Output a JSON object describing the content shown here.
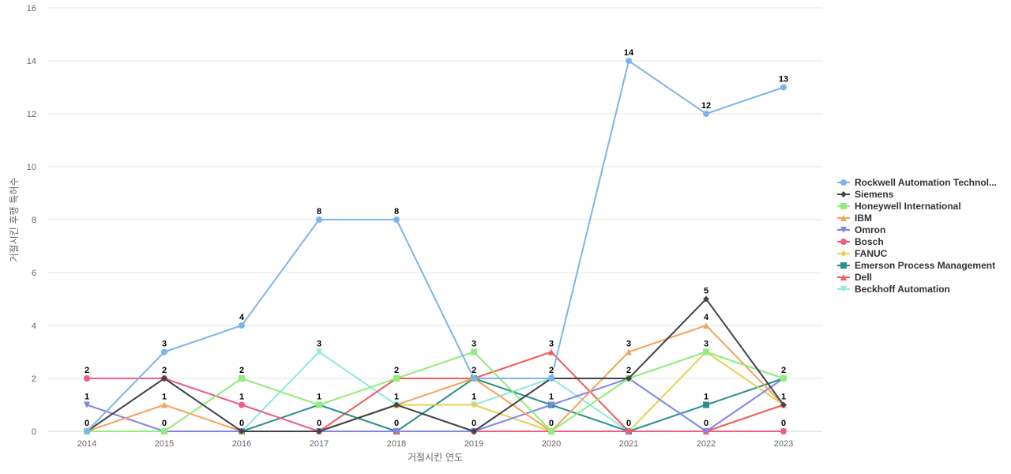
{
  "chart_data": {
    "type": "line",
    "xlabel": "거절시킨 연도",
    "ylabel": "거절시킨 후행 특허수",
    "x": [
      "2014",
      "2015",
      "2016",
      "2017",
      "2018",
      "2019",
      "2020",
      "2021",
      "2022",
      "2023"
    ],
    "ylim": [
      0,
      16
    ],
    "yticks": [
      0,
      2,
      4,
      6,
      8,
      10,
      12,
      14,
      16
    ],
    "grid": true,
    "legend_position": "right",
    "series": [
      {
        "name": "Rockwell Automation Technol...",
        "color": "#7cb5ec",
        "marker": "circle",
        "values": [
          0,
          3,
          4,
          8,
          8,
          2,
          2,
          14,
          12,
          13
        ]
      },
      {
        "name": "Siemens",
        "color": "#434348",
        "marker": "diamond",
        "values": [
          0,
          2,
          0,
          0,
          1,
          0,
          2,
          2,
          5,
          1
        ]
      },
      {
        "name": "Honeywell International",
        "color": "#90ed7d",
        "marker": "square",
        "values": [
          0,
          0,
          2,
          1,
          2,
          3,
          0,
          2,
          3,
          2
        ]
      },
      {
        "name": "IBM",
        "color": "#f7a35c",
        "marker": "triangle",
        "values": [
          0,
          1,
          0,
          0,
          1,
          2,
          0,
          3,
          4,
          1
        ]
      },
      {
        "name": "Omron",
        "color": "#8085e9",
        "marker": "triangle-down",
        "values": [
          1,
          0,
          0,
          0,
          0,
          0,
          1,
          2,
          0,
          2
        ]
      },
      {
        "name": "Bosch",
        "color": "#f15c80",
        "marker": "circle",
        "values": [
          2,
          2,
          1,
          0,
          0,
          0,
          0,
          0,
          0,
          0
        ]
      },
      {
        "name": "FANUC",
        "color": "#e4d354",
        "marker": "diamond",
        "values": [
          0,
          0,
          0,
          0,
          1,
          1,
          0,
          0,
          3,
          1
        ]
      },
      {
        "name": "Emerson Process Management",
        "color": "#2b908f",
        "marker": "square",
        "values": [
          0,
          0,
          0,
          1,
          0,
          2,
          1,
          0,
          1,
          2
        ]
      },
      {
        "name": "Dell",
        "color": "#f45b5b",
        "marker": "triangle",
        "values": [
          0,
          0,
          0,
          0,
          2,
          2,
          3,
          0,
          0,
          1
        ]
      },
      {
        "name": "Beckhoff Automation",
        "color": "#91e8e1",
        "marker": "triangle-down",
        "values": [
          0,
          0,
          0,
          3,
          1,
          1,
          2,
          0,
          0,
          0
        ]
      }
    ],
    "data_labels": [
      {
        "x": "2014",
        "text": "2",
        "value": 2
      },
      {
        "x": "2014",
        "text": "1",
        "value": 1
      },
      {
        "x": "2014",
        "text": "0",
        "value": 0
      },
      {
        "x": "2015",
        "text": "3",
        "value": 3
      },
      {
        "x": "2015",
        "text": "2",
        "value": 2
      },
      {
        "x": "2015",
        "text": "1",
        "value": 1
      },
      {
        "x": "2015",
        "text": "0",
        "value": 0
      },
      {
        "x": "2016",
        "text": "4",
        "value": 4
      },
      {
        "x": "2016",
        "text": "2",
        "value": 2
      },
      {
        "x": "2016",
        "text": "1",
        "value": 1
      },
      {
        "x": "2016",
        "text": "0",
        "value": 0
      },
      {
        "x": "2017",
        "text": "8",
        "value": 8
      },
      {
        "x": "2017",
        "text": "3",
        "value": 3
      },
      {
        "x": "2017",
        "text": "1",
        "value": 1
      },
      {
        "x": "2017",
        "text": "0",
        "value": 0
      },
      {
        "x": "2018",
        "text": "8",
        "value": 8
      },
      {
        "x": "2018",
        "text": "2",
        "value": 2
      },
      {
        "x": "2018",
        "text": "1",
        "value": 1
      },
      {
        "x": "2018",
        "text": "0",
        "value": 0
      },
      {
        "x": "2019",
        "text": "3",
        "value": 3
      },
      {
        "x": "2019",
        "text": "2",
        "value": 2
      },
      {
        "x": "2019",
        "text": "1",
        "value": 1
      },
      {
        "x": "2019",
        "text": "0",
        "value": 0
      },
      {
        "x": "2020",
        "text": "3",
        "value": 3
      },
      {
        "x": "2020",
        "text": "2",
        "value": 2
      },
      {
        "x": "2020",
        "text": "1",
        "value": 1
      },
      {
        "x": "2020",
        "text": "0",
        "value": 0
      },
      {
        "x": "2021",
        "text": "14",
        "value": 14
      },
      {
        "x": "2021",
        "text": "3",
        "value": 3
      },
      {
        "x": "2021",
        "text": "2",
        "value": 2
      },
      {
        "x": "2021",
        "text": "0",
        "value": 0
      },
      {
        "x": "2022",
        "text": "12",
        "value": 12
      },
      {
        "x": "2022",
        "text": "5",
        "value": 5
      },
      {
        "x": "2022",
        "text": "4",
        "value": 4
      },
      {
        "x": "2022",
        "text": "3",
        "value": 3
      },
      {
        "x": "2022",
        "text": "1",
        "value": 1
      },
      {
        "x": "2022",
        "text": "0",
        "value": 0
      },
      {
        "x": "2023",
        "text": "13",
        "value": 13
      },
      {
        "x": "2023",
        "text": "2",
        "value": 2
      },
      {
        "x": "2023",
        "text": "1",
        "value": 1
      },
      {
        "x": "2023",
        "text": "0",
        "value": 0
      }
    ]
  }
}
